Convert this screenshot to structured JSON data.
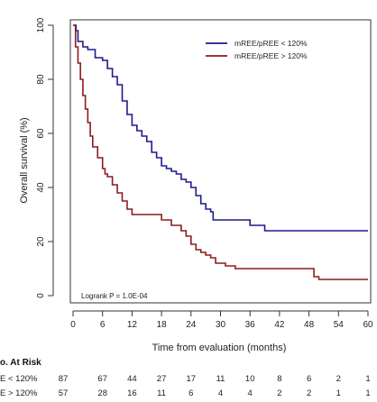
{
  "chart_data": {
    "type": "line",
    "xlabel": "Time from evaluation (months)",
    "ylabel": "Overall survival (%)",
    "xlim": [
      0,
      60
    ],
    "ylim": [
      0,
      100
    ],
    "x_ticks": [
      0,
      6,
      12,
      18,
      24,
      30,
      36,
      42,
      48,
      54,
      60
    ],
    "y_ticks": [
      0,
      20,
      40,
      60,
      80,
      100
    ],
    "grid": false,
    "legend_placement": "top-right",
    "annotation": "Logrank P = 1.0E-04",
    "series": [
      {
        "name": "mREE/pREE < 120%",
        "color": "#1f1a8c",
        "points": [
          [
            0,
            100
          ],
          [
            0.6,
            98
          ],
          [
            1,
            94
          ],
          [
            2,
            92
          ],
          [
            3,
            91
          ],
          [
            4,
            91
          ],
          [
            4.5,
            88
          ],
          [
            6,
            87
          ],
          [
            7,
            84
          ],
          [
            8,
            81
          ],
          [
            9,
            78
          ],
          [
            10,
            72
          ],
          [
            11,
            67
          ],
          [
            12,
            63
          ],
          [
            13,
            61
          ],
          [
            14,
            59
          ],
          [
            15,
            57
          ],
          [
            16,
            53
          ],
          [
            17,
            51
          ],
          [
            18,
            48
          ],
          [
            19,
            47
          ],
          [
            20,
            46
          ],
          [
            21,
            45
          ],
          [
            22,
            43
          ],
          [
            23,
            42
          ],
          [
            24,
            40
          ],
          [
            25,
            37
          ],
          [
            26,
            34
          ],
          [
            27,
            32
          ],
          [
            28,
            31
          ],
          [
            28.5,
            28
          ],
          [
            29,
            28
          ],
          [
            30,
            28
          ],
          [
            33,
            28
          ],
          [
            35,
            28
          ],
          [
            36,
            26
          ],
          [
            37,
            26
          ],
          [
            38,
            26
          ],
          [
            39,
            24
          ],
          [
            45,
            24
          ],
          [
            50,
            24
          ],
          [
            55,
            24
          ],
          [
            60,
            24
          ]
        ]
      },
      {
        "name": "mREE/pREE > 120%",
        "color": "#8b1c1c",
        "points": [
          [
            0,
            100
          ],
          [
            0.5,
            92
          ],
          [
            1,
            86
          ],
          [
            1.5,
            80
          ],
          [
            2,
            74
          ],
          [
            2.5,
            69
          ],
          [
            3,
            64
          ],
          [
            3.5,
            59
          ],
          [
            4,
            55
          ],
          [
            5,
            51
          ],
          [
            6,
            47
          ],
          [
            6.5,
            45
          ],
          [
            7,
            44
          ],
          [
            8,
            41
          ],
          [
            9,
            38
          ],
          [
            10,
            35
          ],
          [
            11,
            32
          ],
          [
            12,
            30
          ],
          [
            15,
            30
          ],
          [
            17,
            30
          ],
          [
            18,
            28
          ],
          [
            20,
            26
          ],
          [
            22,
            24
          ],
          [
            23,
            22
          ],
          [
            24,
            19
          ],
          [
            25,
            17
          ],
          [
            26,
            16
          ],
          [
            27,
            15
          ],
          [
            28,
            14
          ],
          [
            29,
            12
          ],
          [
            30,
            12
          ],
          [
            31,
            11
          ],
          [
            33,
            10
          ],
          [
            38,
            10
          ],
          [
            42,
            10
          ],
          [
            44,
            10
          ],
          [
            46,
            10
          ],
          [
            49,
            7
          ],
          [
            50,
            6
          ],
          [
            54,
            6
          ],
          [
            60,
            6
          ]
        ]
      }
    ]
  },
  "risk_table": {
    "title": "o. At Risk",
    "rows": [
      {
        "label": "E < 120%",
        "counts": [
          "87",
          "67",
          "44",
          "27",
          "17",
          "11",
          "10",
          "8",
          "6",
          "2",
          "1"
        ]
      },
      {
        "label": "E > 120%",
        "counts": [
          "57",
          "28",
          "16",
          "11",
          "6",
          "4",
          "4",
          "2",
          "2",
          "1",
          "1"
        ]
      }
    ]
  }
}
